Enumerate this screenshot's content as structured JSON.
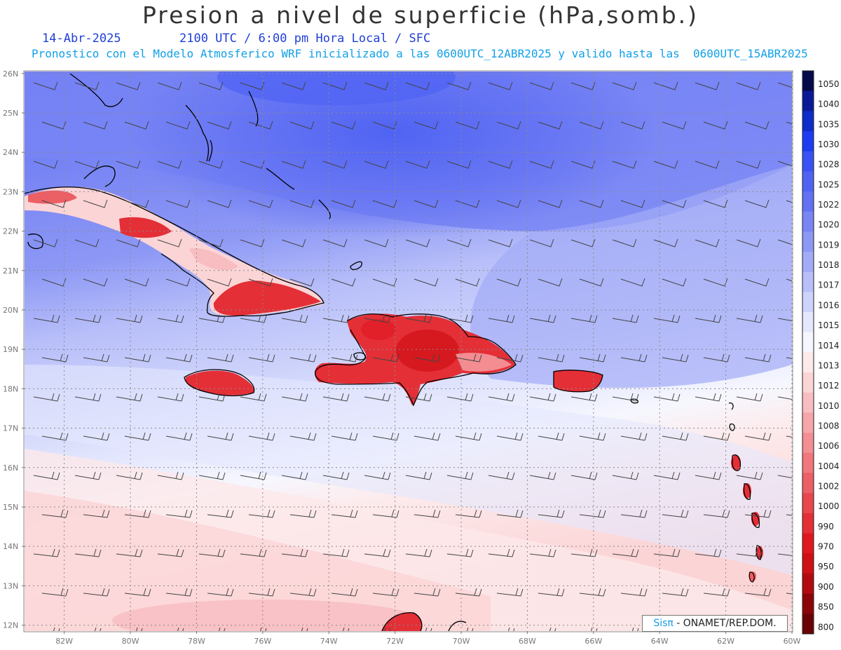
{
  "header": {
    "title": "Presion a nivel de superficie (hPa,somb.)",
    "date": "14-Abr-2025",
    "time": "2100 UTC / 6:00 pm Hora Local / SFC",
    "subtitle": "Pronostico con el Modelo Atmosferico WRF inicializado a las 0600UTC_12ABR2025 y valido hasta las  0600UTC_15ABR2025"
  },
  "map": {
    "lat_labels": [
      "12N",
      "13N",
      "14N",
      "15N",
      "16N",
      "17N",
      "18N",
      "19N",
      "20N",
      "21N",
      "22N",
      "23N",
      "24N",
      "25N",
      "26N"
    ],
    "lon_labels": [
      "82W",
      "80W",
      "78W",
      "76W",
      "74W",
      "72W",
      "70W",
      "68W",
      "66W",
      "64W",
      "62W",
      "60W"
    ],
    "lon_range": [
      -83.2,
      -60
    ],
    "lat_range": [
      11.85,
      26.05
    ],
    "gridlines": true
  },
  "colorbar": {
    "levels": [
      "1050",
      "1040",
      "1035",
      "1030",
      "1028",
      "1025",
      "1022",
      "1020",
      "1019",
      "1018",
      "1017",
      "1016",
      "1015",
      "1014",
      "1013",
      "1012",
      "1010",
      "1008",
      "1006",
      "1004",
      "1002",
      "1000",
      "990",
      "970",
      "950",
      "900",
      "850",
      "800"
    ],
    "colors": [
      "#050a4a",
      "#0a1a96",
      "#0f2bc8",
      "#1d3cf2",
      "#3a52f4",
      "#4f63f3",
      "#6372f3",
      "#7885f4",
      "#8d98f5",
      "#a3abf7",
      "#b8bff9",
      "#ced3fb",
      "#e4e7fd",
      "#f6f7fe",
      "#fde9ea",
      "#fbd4d6",
      "#f8bdc0",
      "#f6a5a9",
      "#f38e93",
      "#f0777c",
      "#ec5f65",
      "#e8474e",
      "#e42f37",
      "#df1820",
      "#cf1015",
      "#b20a10",
      "#8c0509",
      "#6a0206"
    ]
  },
  "credit": {
    "brand": "Sisπ",
    "text": " - ONAMET/REP.DOM."
  }
}
